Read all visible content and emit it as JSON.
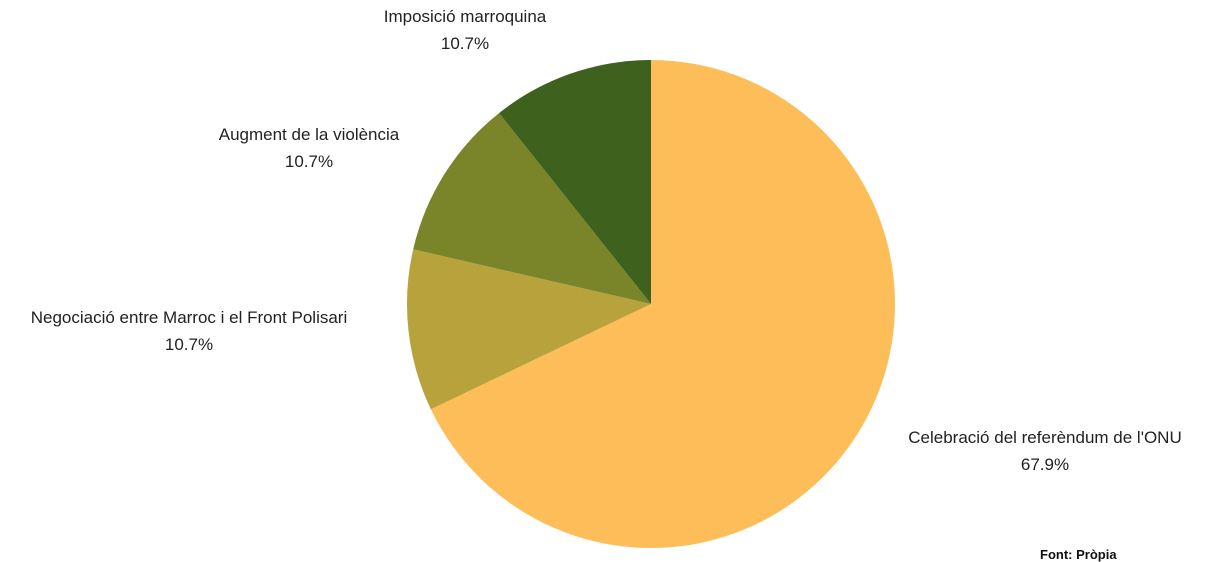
{
  "chart_data": {
    "type": "pie",
    "title": "",
    "slices": [
      {
        "label": "Celebració del referèndum de l'ONU",
        "value": 67.9,
        "value_label": "67.9%",
        "color": "#FDBE5A"
      },
      {
        "label": "Negociació entre Marroc i el Front Polisari",
        "value": 10.7,
        "value_label": "10.7%",
        "color": "#B7A23C"
      },
      {
        "label": "Augment de la violència",
        "value": 10.7,
        "value_label": "10.7%",
        "color": "#7A8429"
      },
      {
        "label": "Imposició marroquina",
        "value": 10.7,
        "value_label": "10.7%",
        "color": "#3E621E"
      }
    ],
    "start": "12 o'clock",
    "direction": "clockwise"
  },
  "source": "Font: Pròpia"
}
